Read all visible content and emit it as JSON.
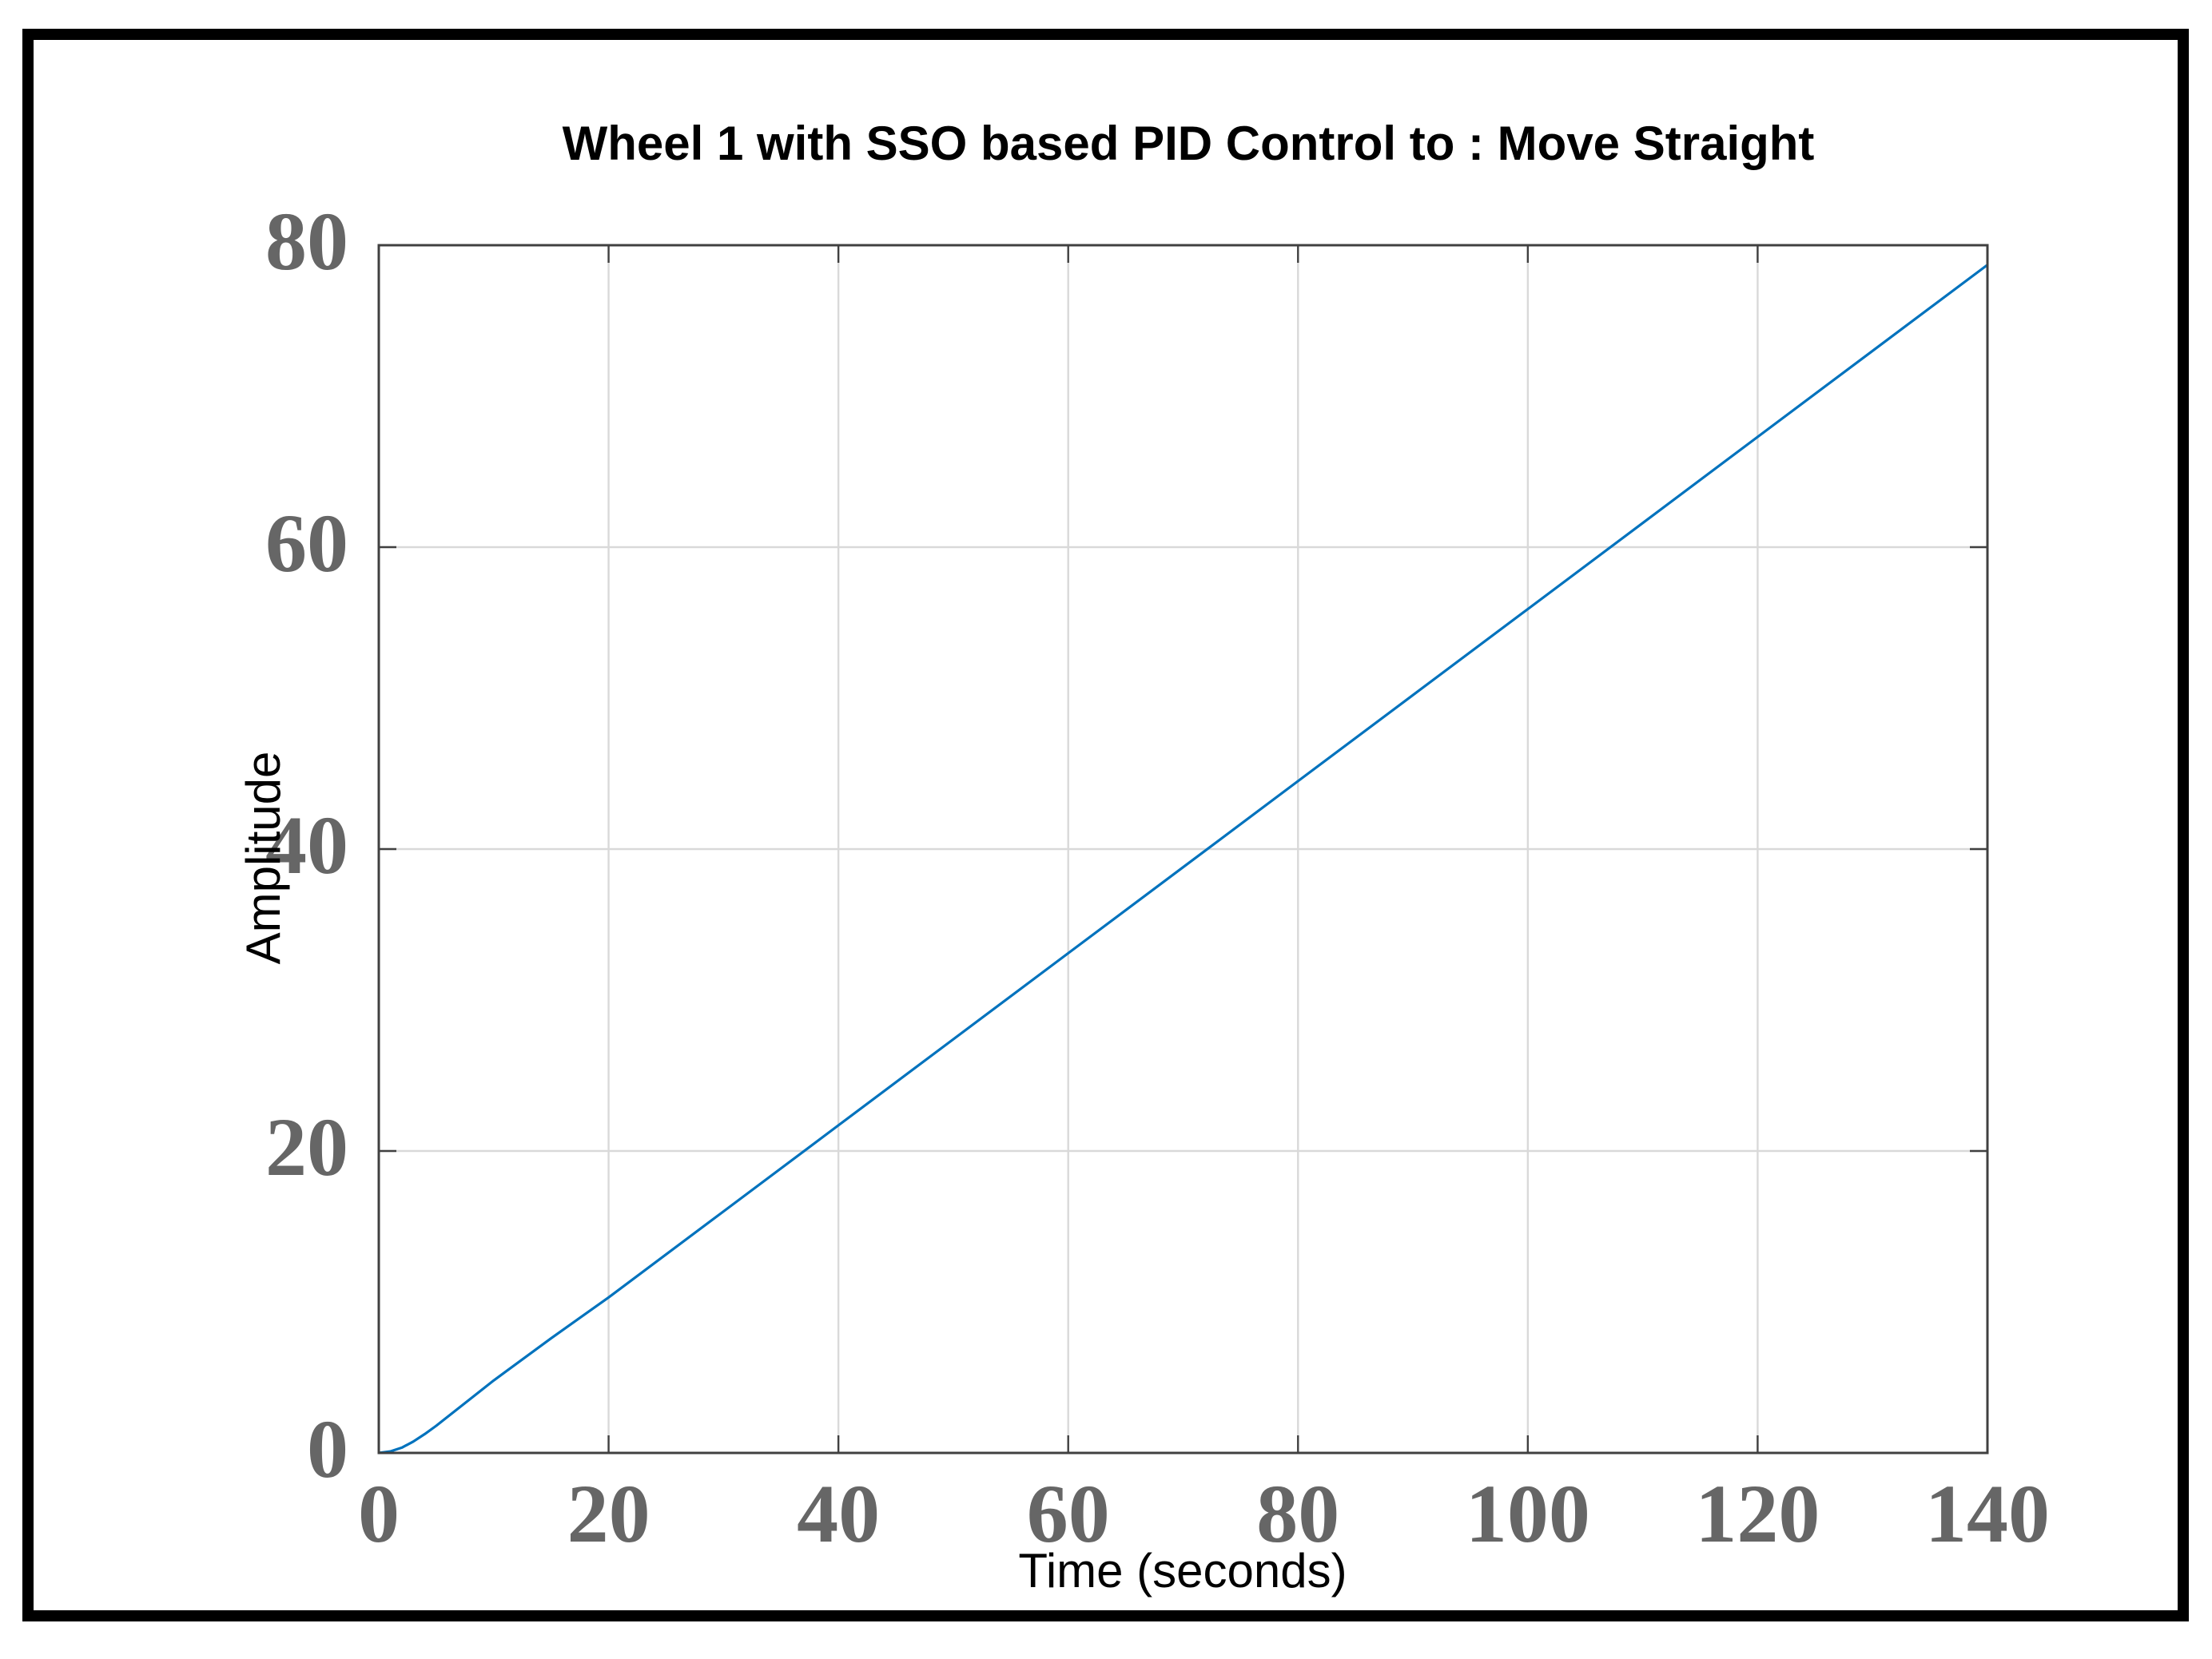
{
  "chart_data": {
    "type": "line",
    "title": "Wheel 1 with SSO based PID Control to : Move Straight",
    "xlabel": "Time (seconds)",
    "ylabel": "Amplitude",
    "xlim": [
      0,
      140
    ],
    "ylim": [
      0,
      80
    ],
    "xticks": [
      "0",
      "20",
      "40",
      "60",
      "80",
      "100",
      "120",
      "140"
    ],
    "yticks": [
      "0",
      "20",
      "40",
      "60",
      "80"
    ],
    "grid": true,
    "series": [
      {
        "color": "#0072BD",
        "x": [
          0,
          1,
          2,
          3,
          4,
          5,
          6,
          8,
          10,
          15,
          20,
          30,
          40,
          50,
          60,
          70,
          80,
          90,
          100,
          110,
          120,
          130,
          140
        ],
        "y": [
          0,
          0.1,
          0.35,
          0.75,
          1.25,
          1.8,
          2.4,
          3.6,
          4.8,
          7.6,
          10.3,
          16.0,
          21.7,
          27.4,
          33.1,
          38.8,
          44.5,
          50.2,
          55.9,
          61.6,
          67.3,
          73.0,
          78.7
        ]
      }
    ]
  }
}
